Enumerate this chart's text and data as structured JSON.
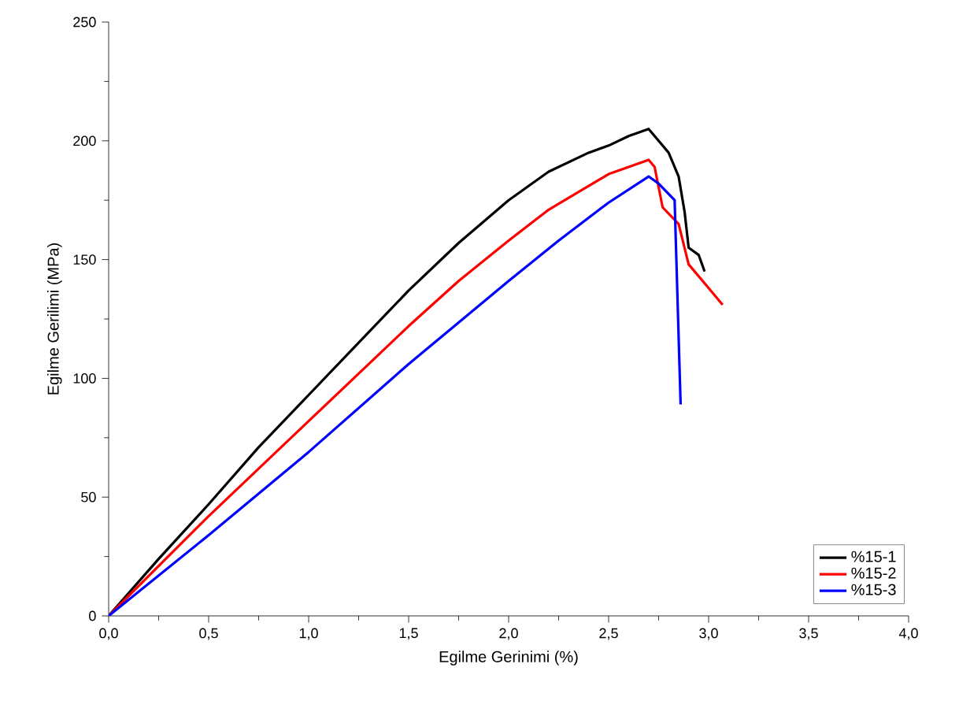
{
  "chart_data": {
    "type": "line",
    "xlabel": "Egilme Gerinimi (%)",
    "ylabel": "Egilme Gerilimi (MPa)",
    "xlim": [
      0,
      4
    ],
    "ylim": [
      0,
      250
    ],
    "xticks": [
      {
        "value": 0,
        "label": "0,0"
      },
      {
        "value": 0.5,
        "label": "0,5"
      },
      {
        "value": 1,
        "label": "1,0"
      },
      {
        "value": 1.5,
        "label": "1,5"
      },
      {
        "value": 2,
        "label": "2,0"
      },
      {
        "value": 2.5,
        "label": "2,5"
      },
      {
        "value": 3,
        "label": "3,0"
      },
      {
        "value": 3.5,
        "label": "3,5"
      },
      {
        "value": 4,
        "label": "4,0"
      }
    ],
    "yticks": [
      0,
      50,
      100,
      150,
      200,
      250
    ],
    "grid": false,
    "legend": "bottom right",
    "marker": "none",
    "line_style": "solid",
    "series": [
      {
        "name": "%15-1",
        "color": "#000000",
        "x": [
          0,
          0.25,
          0.5,
          0.75,
          1.0,
          1.25,
          1.5,
          1.75,
          2.0,
          2.2,
          2.4,
          2.5,
          2.6,
          2.7,
          2.75,
          2.8,
          2.85,
          2.88,
          2.9,
          2.95,
          2.98
        ],
        "values": [
          0,
          24,
          47,
          71,
          93,
          115,
          137,
          157,
          175,
          187,
          195,
          198,
          202,
          205,
          200,
          195,
          185,
          170,
          155,
          152,
          145
        ]
      },
      {
        "name": "%15-2",
        "color": "#ff0000",
        "x": [
          0,
          0.25,
          0.5,
          0.75,
          1.0,
          1.25,
          1.5,
          1.75,
          2.0,
          2.2,
          2.4,
          2.5,
          2.6,
          2.7,
          2.73,
          2.77,
          2.85,
          2.9,
          3.0,
          3.07
        ],
        "values": [
          0,
          21,
          42,
          62,
          82,
          102,
          122,
          141,
          158,
          171,
          181,
          186,
          189,
          192,
          189,
          172,
          165,
          148,
          138,
          131
        ]
      },
      {
        "name": "%15-3",
        "color": "#0000ff",
        "x": [
          0,
          0.5,
          1.0,
          1.5,
          2.0,
          2.25,
          2.5,
          2.7,
          2.75,
          2.83,
          2.86
        ],
        "values": [
          0,
          34,
          69,
          106,
          141,
          158,
          174,
          185,
          182,
          175,
          89
        ]
      }
    ]
  }
}
